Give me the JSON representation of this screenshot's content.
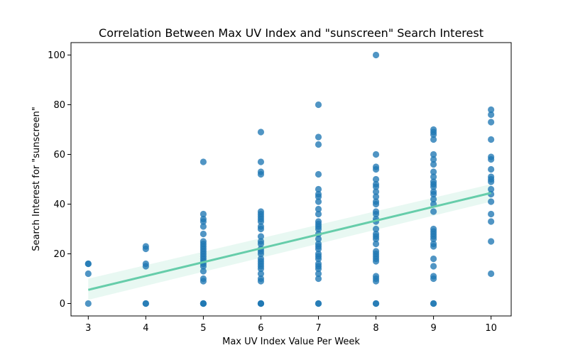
{
  "chart_data": {
    "type": "scatter",
    "title": "Correlation Between Max UV Index and \"sunscreen\" Search Interest",
    "xlabel": "Max UV Index Value Per Week",
    "ylabel": "Search Interest for \"sunscreen\"",
    "xlim": [
      2.7,
      10.35
    ],
    "ylim": [
      -5,
      105
    ],
    "xticks": [
      3,
      4,
      5,
      6,
      7,
      8,
      9,
      10
    ],
    "yticks": [
      0,
      20,
      40,
      60,
      80,
      100
    ],
    "grid": false,
    "point_color": "#1f77b4",
    "regression_color": "#66cdaa",
    "points": [
      [
        3,
        0
      ],
      [
        3,
        12
      ],
      [
        3,
        16
      ],
      [
        3,
        16
      ],
      [
        4,
        0
      ],
      [
        4,
        0
      ],
      [
        4,
        15
      ],
      [
        4,
        16
      ],
      [
        4,
        22
      ],
      [
        4,
        23
      ],
      [
        5,
        0
      ],
      [
        5,
        0
      ],
      [
        5,
        0
      ],
      [
        5,
        9
      ],
      [
        5,
        10
      ],
      [
        5,
        13
      ],
      [
        5,
        15
      ],
      [
        5,
        16
      ],
      [
        5,
        17
      ],
      [
        5,
        18
      ],
      [
        5,
        19
      ],
      [
        5,
        20
      ],
      [
        5,
        21
      ],
      [
        5,
        22
      ],
      [
        5,
        23
      ],
      [
        5,
        24
      ],
      [
        5,
        25
      ],
      [
        5,
        28
      ],
      [
        5,
        31
      ],
      [
        5,
        33
      ],
      [
        5,
        34
      ],
      [
        5,
        36
      ],
      [
        5,
        57
      ],
      [
        6,
        0
      ],
      [
        6,
        0
      ],
      [
        6,
        0
      ],
      [
        6,
        9
      ],
      [
        6,
        10
      ],
      [
        6,
        12
      ],
      [
        6,
        14
      ],
      [
        6,
        15
      ],
      [
        6,
        16
      ],
      [
        6,
        17
      ],
      [
        6,
        18
      ],
      [
        6,
        20
      ],
      [
        6,
        21
      ],
      [
        6,
        22
      ],
      [
        6,
        24
      ],
      [
        6,
        25
      ],
      [
        6,
        27
      ],
      [
        6,
        30
      ],
      [
        6,
        31
      ],
      [
        6,
        33
      ],
      [
        6,
        34
      ],
      [
        6,
        35
      ],
      [
        6,
        36
      ],
      [
        6,
        37
      ],
      [
        6,
        52
      ],
      [
        6,
        53
      ],
      [
        6,
        57
      ],
      [
        6,
        69
      ],
      [
        7,
        0
      ],
      [
        7,
        0
      ],
      [
        7,
        10
      ],
      [
        7,
        12
      ],
      [
        7,
        14
      ],
      [
        7,
        15
      ],
      [
        7,
        16
      ],
      [
        7,
        18
      ],
      [
        7,
        19
      ],
      [
        7,
        20
      ],
      [
        7,
        22
      ],
      [
        7,
        23
      ],
      [
        7,
        24
      ],
      [
        7,
        26
      ],
      [
        7,
        28
      ],
      [
        7,
        30
      ],
      [
        7,
        31
      ],
      [
        7,
        32
      ],
      [
        7,
        33
      ],
      [
        7,
        36
      ],
      [
        7,
        38
      ],
      [
        7,
        41
      ],
      [
        7,
        43
      ],
      [
        7,
        44
      ],
      [
        7,
        46
      ],
      [
        7,
        52
      ],
      [
        7,
        64
      ],
      [
        7,
        67
      ],
      [
        7,
        80
      ],
      [
        8,
        0
      ],
      [
        8,
        0
      ],
      [
        8,
        9
      ],
      [
        8,
        10
      ],
      [
        8,
        11
      ],
      [
        8,
        17
      ],
      [
        8,
        18
      ],
      [
        8,
        19
      ],
      [
        8,
        20
      ],
      [
        8,
        21
      ],
      [
        8,
        24
      ],
      [
        8,
        26
      ],
      [
        8,
        27
      ],
      [
        8,
        28
      ],
      [
        8,
        30
      ],
      [
        8,
        33
      ],
      [
        8,
        34
      ],
      [
        8,
        36
      ],
      [
        8,
        37
      ],
      [
        8,
        40
      ],
      [
        8,
        41
      ],
      [
        8,
        43
      ],
      [
        8,
        45
      ],
      [
        8,
        47
      ],
      [
        8,
        48
      ],
      [
        8,
        50
      ],
      [
        8,
        54
      ],
      [
        8,
        55
      ],
      [
        8,
        60
      ],
      [
        8,
        100
      ],
      [
        9,
        0
      ],
      [
        9,
        0
      ],
      [
        9,
        10
      ],
      [
        9,
        11
      ],
      [
        9,
        15
      ],
      [
        9,
        18
      ],
      [
        9,
        23
      ],
      [
        9,
        24
      ],
      [
        9,
        26
      ],
      [
        9,
        27
      ],
      [
        9,
        28
      ],
      [
        9,
        29
      ],
      [
        9,
        30
      ],
      [
        9,
        37
      ],
      [
        9,
        40
      ],
      [
        9,
        42
      ],
      [
        9,
        44
      ],
      [
        9,
        45
      ],
      [
        9,
        47
      ],
      [
        9,
        48
      ],
      [
        9,
        49
      ],
      [
        9,
        51
      ],
      [
        9,
        53
      ],
      [
        9,
        56
      ],
      [
        9,
        58
      ],
      [
        9,
        60
      ],
      [
        9,
        66
      ],
      [
        9,
        68
      ],
      [
        9,
        69
      ],
      [
        9,
        70
      ],
      [
        10,
        12
      ],
      [
        10,
        25
      ],
      [
        10,
        33
      ],
      [
        10,
        36
      ],
      [
        10,
        41
      ],
      [
        10,
        44
      ],
      [
        10,
        46
      ],
      [
        10,
        49
      ],
      [
        10,
        50
      ],
      [
        10,
        51
      ],
      [
        10,
        54
      ],
      [
        10,
        58
      ],
      [
        10,
        59
      ],
      [
        10,
        66
      ],
      [
        10,
        73
      ],
      [
        10,
        76
      ],
      [
        10,
        78
      ]
    ],
    "regression": {
      "x": [
        3,
        10
      ],
      "y": [
        5.5,
        44.5
      ],
      "ci_lower": [
        1.5,
        41.0
      ],
      "ci_upper": [
        10.0,
        48.0
      ]
    }
  }
}
